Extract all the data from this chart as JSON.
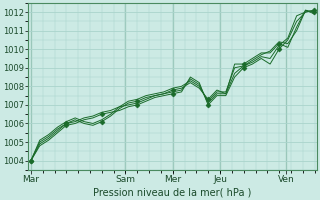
{
  "background_color": "#cceae4",
  "grid_color": "#aad4cc",
  "line_color": "#1a6b2a",
  "marker_color": "#1a6b2a",
  "xlabel": "Pression niveau de la mer( hPa )",
  "ylim": [
    1003.5,
    1012.5
  ],
  "yticks": [
    1004,
    1005,
    1006,
    1007,
    1008,
    1009,
    1010,
    1011,
    1012
  ],
  "xtick_labels": [
    "Mar",
    "Sam",
    "Mer",
    "Jeu",
    "Ven"
  ],
  "xtick_positions": [
    0,
    0.333,
    0.5,
    0.667,
    0.9
  ],
  "vline_positions": [
    0,
    0.333,
    0.5,
    0.667,
    0.9
  ],
  "series": [
    [
      1004.0,
      1004.8,
      1005.1,
      1005.5,
      1005.9,
      1006.0,
      1006.2,
      1006.3,
      1006.5,
      1006.6,
      1006.7,
      1006.9,
      1007.0,
      1007.2,
      1007.4,
      1007.5,
      1007.6,
      1007.7,
      1008.5,
      1008.2,
      1007.0,
      1007.5,
      1007.5,
      1008.5,
      1009.0,
      1009.2,
      1009.5,
      1009.2,
      1010.0,
      1010.5,
      1011.5,
      1012.0,
      1012.1
    ],
    [
      1004.0,
      1004.9,
      1005.2,
      1005.6,
      1006.0,
      1006.1,
      1006.3,
      1006.4,
      1006.6,
      1006.7,
      1006.9,
      1007.0,
      1007.1,
      1007.3,
      1007.5,
      1007.6,
      1007.7,
      1007.8,
      1008.4,
      1008.1,
      1007.1,
      1007.6,
      1007.6,
      1008.7,
      1009.1,
      1009.3,
      1009.6,
      1009.5,
      1010.2,
      1010.6,
      1011.8,
      1012.0,
      1012.1
    ],
    [
      1004.0,
      1005.0,
      1005.3,
      1005.7,
      1006.0,
      1006.2,
      1006.0,
      1005.9,
      1006.1,
      1006.4,
      1006.8,
      1007.1,
      1007.2,
      1007.4,
      1007.5,
      1007.6,
      1007.8,
      1007.9,
      1008.2,
      1007.9,
      1007.3,
      1007.8,
      1007.6,
      1009.2,
      1009.2,
      1009.5,
      1009.8,
      1009.8,
      1010.3,
      1010.1,
      1011.2,
      1012.1,
      1012.0
    ],
    [
      1004.0,
      1005.1,
      1005.4,
      1005.8,
      1006.1,
      1006.3,
      1006.1,
      1006.0,
      1006.2,
      1006.5,
      1006.9,
      1007.2,
      1007.3,
      1007.5,
      1007.6,
      1007.7,
      1007.9,
      1008.0,
      1008.3,
      1008.0,
      1007.2,
      1007.7,
      1007.7,
      1009.0,
      1009.1,
      1009.4,
      1009.7,
      1009.9,
      1010.4,
      1010.3,
      1011.0,
      1012.1,
      1011.9
    ]
  ],
  "marker_series": [
    0,
    2
  ],
  "spine_color": "#4a8a60",
  "tick_color": "#1a4a2a",
  "xlabel_fontsize": 7,
  "ytick_fontsize": 6,
  "xtick_fontsize": 6.5
}
